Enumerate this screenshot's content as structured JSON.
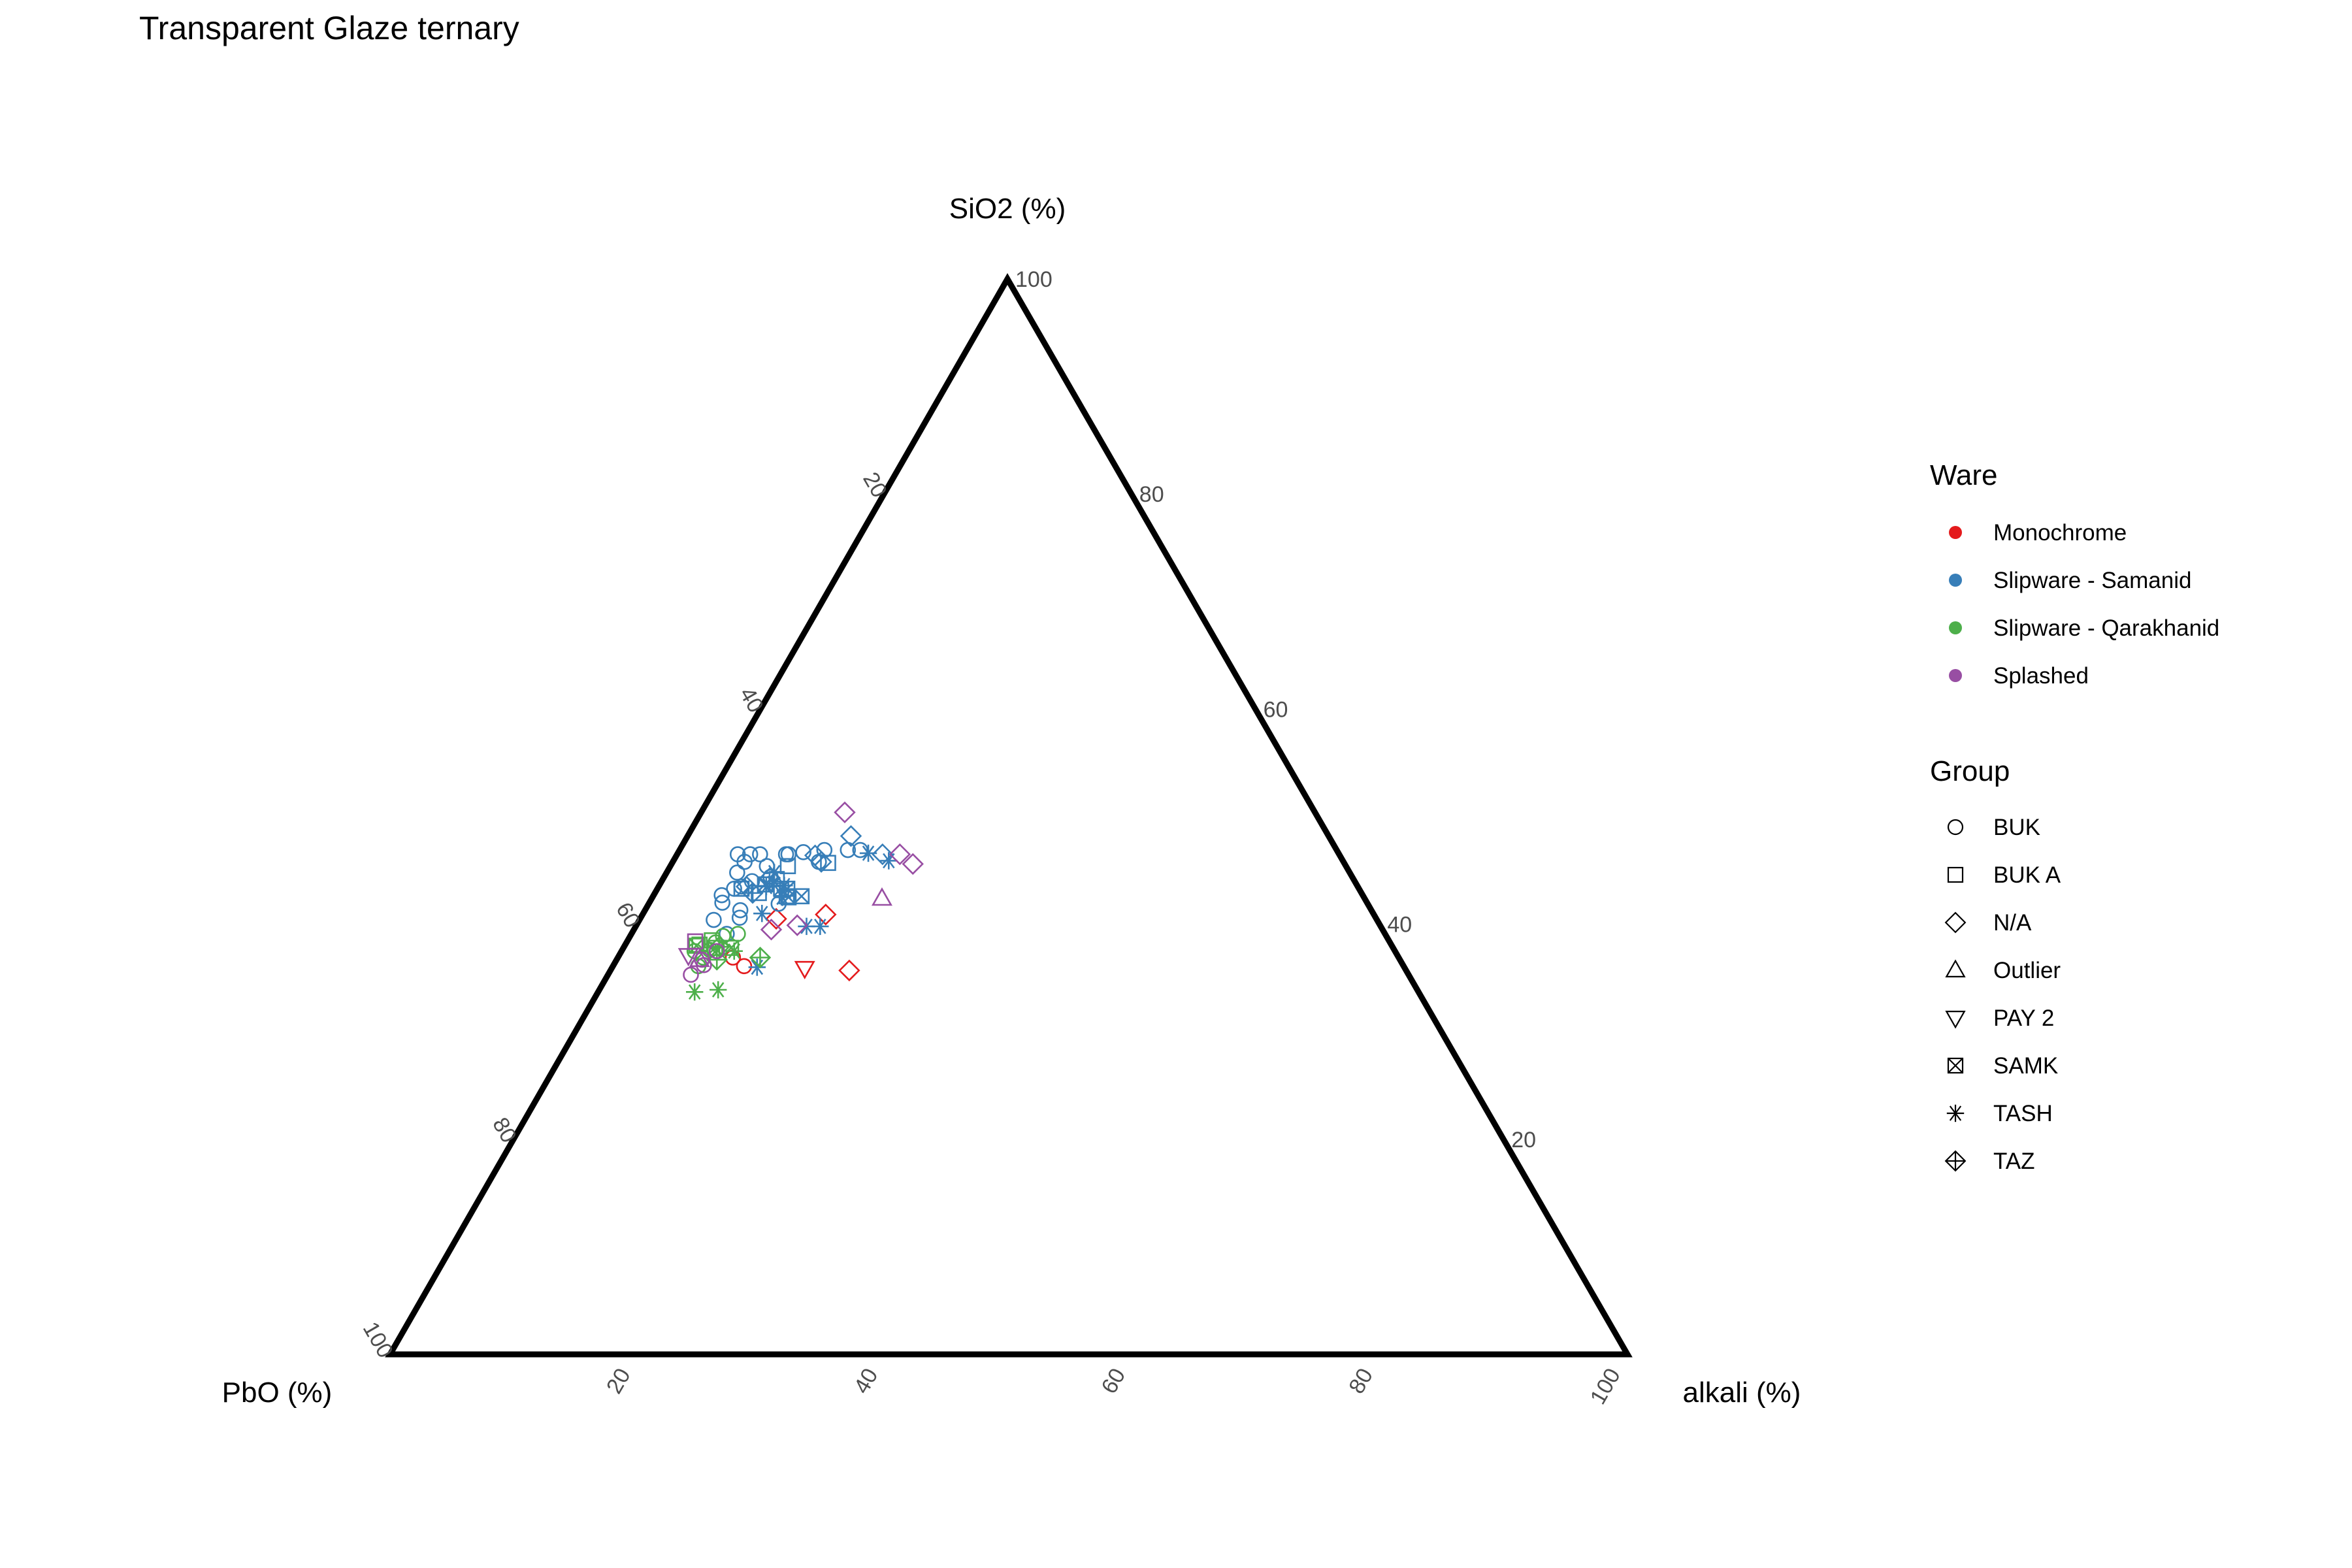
{
  "chart_data": {
    "type": "scatter",
    "subtype": "ternary",
    "title": "Transparent Glaze ternary",
    "axes": {
      "top": "SiO2 (%)",
      "left": "PbO (%)",
      "right": "alkali (%)"
    },
    "ticks": {
      "left_edge": [
        "20",
        "40",
        "60",
        "80",
        "100"
      ],
      "right_edge": [
        "20",
        "40",
        "60",
        "80",
        "100"
      ],
      "bottom_edge": [
        "20",
        "40",
        "60",
        "80",
        "100"
      ]
    },
    "legend_placement": "right",
    "ware_legend": {
      "title": "Ware",
      "items": [
        {
          "name": "Monochrome",
          "color": "#e41a1c"
        },
        {
          "name": "Slipware - Samanid",
          "color": "#377eb8"
        },
        {
          "name": "Slipware - Qarakhanid",
          "color": "#4daf4a"
        },
        {
          "name": "Splashed",
          "color": "#984ea3"
        }
      ]
    },
    "group_legend": {
      "title": "Group",
      "items": [
        {
          "name": "BUK",
          "shape": "circle"
        },
        {
          "name": "BUK A",
          "shape": "square"
        },
        {
          "name": "N/A",
          "shape": "diamond"
        },
        {
          "name": "Outlier",
          "shape": "triangle-up"
        },
        {
          "name": "PAY 2",
          "shape": "triangle-down"
        },
        {
          "name": "SAMK",
          "shape": "square-x"
        },
        {
          "name": "TASH",
          "shape": "asterisk"
        },
        {
          "name": "TAZ",
          "shape": "diamond-plus"
        }
      ]
    },
    "series": [
      {
        "name": "Monochrome",
        "points": [
          {
            "pbo": 53.8,
            "sio2": 36.9,
            "alkali": 9.3,
            "group": "BUK"
          },
          {
            "pbo": 53.3,
            "sio2": 36.1,
            "alkali": 10.6,
            "group": "BUK"
          },
          {
            "pbo": 48.5,
            "sio2": 35.9,
            "alkali": 15.6,
            "group": "PAY 2"
          },
          {
            "pbo": 48.5,
            "sio2": 40.5,
            "alkali": 11.0,
            "group": "N/A"
          },
          {
            "pbo": 44.3,
            "sio2": 40.9,
            "alkali": 14.8,
            "group": "N/A"
          },
          {
            "pbo": 45.0,
            "sio2": 35.7,
            "alkali": 19.3,
            "group": "N/A"
          }
        ]
      },
      {
        "name": "Slipware - Samanid",
        "points": [
          {
            "pbo": 48.6,
            "sio2": 46.5,
            "alkali": 4.9,
            "group": "BUK"
          },
          {
            "pbo": 47.6,
            "sio2": 46.5,
            "alkali": 5.9,
            "group": "BUK"
          },
          {
            "pbo": 46.8,
            "sio2": 46.5,
            "alkali": 6.7,
            "group": "BUK"
          },
          {
            "pbo": 48.4,
            "sio2": 45.8,
            "alkali": 5.8,
            "group": "BUK"
          },
          {
            "pbo": 46.8,
            "sio2": 45.4,
            "alkali": 7.8,
            "group": "BUK"
          },
          {
            "pbo": 47.0,
            "sio2": 44.4,
            "alkali": 8.6,
            "group": "BUK"
          },
          {
            "pbo": 52.1,
            "sio2": 42.0,
            "alkali": 5.9,
            "group": "BUK"
          },
          {
            "pbo": 51.8,
            "sio2": 42.7,
            "alkali": 5.5,
            "group": "BUK"
          },
          {
            "pbo": 53.2,
            "sio2": 39.1,
            "alkali": 7.7,
            "group": "BUK"
          },
          {
            "pbo": 51.4,
            "sio2": 40.6,
            "alkali": 8.0,
            "group": "BUK"
          },
          {
            "pbo": 53.6,
            "sio2": 40.4,
            "alkali": 6.0,
            "group": "BUK"
          },
          {
            "pbo": 51.0,
            "sio2": 41.3,
            "alkali": 7.7,
            "group": "BUK"
          },
          {
            "pbo": 50.5,
            "sio2": 43.3,
            "alkali": 6.2,
            "group": "BUK"
          },
          {
            "pbo": 49.8,
            "sio2": 43.5,
            "alkali": 6.7,
            "group": "BUK"
          },
          {
            "pbo": 44.7,
            "sio2": 46.5,
            "alkali": 8.8,
            "group": "BUK"
          },
          {
            "pbo": 44.5,
            "sio2": 46.5,
            "alkali": 9.0,
            "group": "BUK"
          },
          {
            "pbo": 43.2,
            "sio2": 46.7,
            "alkali": 10.1,
            "group": "BUK"
          },
          {
            "pbo": 42.4,
            "sio2": 45.8,
            "alkali": 11.8,
            "group": "BUK"
          },
          {
            "pbo": 41.4,
            "sio2": 46.9,
            "alkali": 11.7,
            "group": "BUK"
          },
          {
            "pbo": 39.5,
            "sio2": 46.9,
            "alkali": 13.6,
            "group": "BUK"
          },
          {
            "pbo": 38.5,
            "sio2": 46.9,
            "alkali": 14.6,
            "group": "BUK"
          },
          {
            "pbo": 49.5,
            "sio2": 44.8,
            "alkali": 5.7,
            "group": "BUK"
          },
          {
            "pbo": 48.7,
            "sio2": 44.0,
            "alkali": 7.3,
            "group": "BUK"
          },
          {
            "pbo": 47.6,
            "sio2": 41.9,
            "alkali": 10.5,
            "group": "BUK"
          },
          {
            "pbo": 46.6,
            "sio2": 44.2,
            "alkali": 9.2,
            "group": "BUK A"
          },
          {
            "pbo": 45.1,
            "sio2": 45.4,
            "alkali": 9.5,
            "group": "BUK A"
          },
          {
            "pbo": 49.9,
            "sio2": 43.3,
            "alkali": 6.8,
            "group": "BUK A"
          },
          {
            "pbo": 48.7,
            "sio2": 42.9,
            "alkali": 8.4,
            "group": "BUK A"
          },
          {
            "pbo": 46.6,
            "sio2": 42.6,
            "alkali": 10.8,
            "group": "BUK A"
          },
          {
            "pbo": 41.7,
            "sio2": 45.7,
            "alkali": 12.6,
            "group": "BUK A"
          },
          {
            "pbo": 47.1,
            "sio2": 44.3,
            "alkali": 8.6,
            "group": "N/A"
          },
          {
            "pbo": 49.4,
            "sio2": 43.5,
            "alkali": 7.1,
            "group": "N/A"
          },
          {
            "pbo": 42.4,
            "sio2": 46.4,
            "alkali": 11.2,
            "group": "N/A"
          },
          {
            "pbo": 42.2,
            "sio2": 45.8,
            "alkali": 12.0,
            "group": "N/A"
          },
          {
            "pbo": 38.6,
            "sio2": 48.2,
            "alkali": 13.2,
            "group": "N/A"
          },
          {
            "pbo": 36.9,
            "sio2": 46.5,
            "alkali": 16.6,
            "group": "N/A"
          },
          {
            "pbo": 46.2,
            "sio2": 43.3,
            "alkali": 10.5,
            "group": "SAMK"
          },
          {
            "pbo": 47.8,
            "sio2": 43.7,
            "alkali": 8.5,
            "group": "SAMK"
          },
          {
            "pbo": 46.5,
            "sio2": 42.5,
            "alkali": 11.0,
            "group": "SAMK"
          },
          {
            "pbo": 46.7,
            "sio2": 43.3,
            "alkali": 10.0,
            "group": "SAMK"
          },
          {
            "pbo": 45.4,
            "sio2": 42.6,
            "alkali": 12.0,
            "group": "SAMK"
          },
          {
            "pbo": 46.3,
            "sio2": 43.6,
            "alkali": 10.1,
            "group": "TASH"
          },
          {
            "pbo": 47.8,
            "sio2": 43.5,
            "alkali": 8.7,
            "group": "TASH"
          },
          {
            "pbo": 47.1,
            "sio2": 43.8,
            "alkali": 9.1,
            "group": "TASH"
          },
          {
            "pbo": 46.5,
            "sio2": 44.8,
            "alkali": 8.7,
            "group": "TASH"
          },
          {
            "pbo": 47.0,
            "sio2": 42.5,
            "alkali": 10.5,
            "group": "TASH"
          },
          {
            "pbo": 49.4,
            "sio2": 41.0,
            "alkali": 9.6,
            "group": "TASH"
          },
          {
            "pbo": 46.4,
            "sio2": 39.8,
            "alkali": 13.8,
            "group": "TASH"
          },
          {
            "pbo": 45.3,
            "sio2": 39.8,
            "alkali": 14.9,
            "group": "TASH"
          },
          {
            "pbo": 52.3,
            "sio2": 36.0,
            "alkali": 11.7,
            "group": "TASH"
          },
          {
            "pbo": 38.0,
            "sio2": 46.6,
            "alkali": 15.4,
            "group": "TASH"
          },
          {
            "pbo": 36.7,
            "sio2": 45.9,
            "alkali": 17.4,
            "group": "TASH"
          },
          {
            "pbo": 49.2,
            "sio2": 42.9,
            "alkali": 7.9,
            "group": "TAZ"
          }
        ]
      },
      {
        "name": "Slipware - Qarakhanid",
        "points": [
          {
            "pbo": 57.0,
            "sio2": 36.1,
            "alkali": 6.9,
            "group": "BUK"
          },
          {
            "pbo": 56.2,
            "sio2": 36.9,
            "alkali": 6.9,
            "group": "BUK"
          },
          {
            "pbo": 56.6,
            "sio2": 37.5,
            "alkali": 5.9,
            "group": "BUK"
          },
          {
            "pbo": 55.3,
            "sio2": 37.6,
            "alkali": 7.1,
            "group": "BUK"
          },
          {
            "pbo": 54.5,
            "sio2": 38.3,
            "alkali": 7.2,
            "group": "BUK"
          },
          {
            "pbo": 53.6,
            "sio2": 38.9,
            "alkali": 7.5,
            "group": "BUK"
          },
          {
            "pbo": 52.3,
            "sio2": 39.1,
            "alkali": 8.6,
            "group": "BUK"
          },
          {
            "pbo": 55.9,
            "sio2": 38.1,
            "alkali": 6.0,
            "group": "BUK A"
          },
          {
            "pbo": 54.7,
            "sio2": 38.5,
            "alkali": 6.8,
            "group": "BUK A"
          },
          {
            "pbo": 56.2,
            "sio2": 38.0,
            "alkali": 5.8,
            "group": "SAMK"
          },
          {
            "pbo": 54.8,
            "sio2": 37.8,
            "alkali": 7.4,
            "group": "SAMK"
          },
          {
            "pbo": 53.5,
            "sio2": 37.8,
            "alkali": 8.7,
            "group": "SAMK"
          },
          {
            "pbo": 58.5,
            "sio2": 33.7,
            "alkali": 7.8,
            "group": "TASH"
          },
          {
            "pbo": 56.5,
            "sio2": 33.9,
            "alkali": 9.6,
            "group": "TASH"
          },
          {
            "pbo": 53.4,
            "sio2": 37.5,
            "alkali": 9.1,
            "group": "TASH"
          },
          {
            "pbo": 55.2,
            "sio2": 36.7,
            "alkali": 8.1,
            "group": "TAZ"
          },
          {
            "pbo": 54.4,
            "sio2": 37.9,
            "alkali": 7.7,
            "group": "TAZ"
          },
          {
            "pbo": 51.6,
            "sio2": 36.9,
            "alkali": 11.5,
            "group": "TAZ"
          }
        ]
      },
      {
        "name": "Splashed",
        "points": [
          {
            "pbo": 58.0,
            "sio2": 35.3,
            "alkali": 6.7,
            "group": "BUK"
          },
          {
            "pbo": 56.5,
            "sio2": 36.2,
            "alkali": 7.3,
            "group": "BUK"
          },
          {
            "pbo": 56.4,
            "sio2": 36.7,
            "alkali": 6.9,
            "group": "BUK"
          },
          {
            "pbo": 54.8,
            "sio2": 37.5,
            "alkali": 7.7,
            "group": "BUK"
          },
          {
            "pbo": 56.1,
            "sio2": 38.4,
            "alkali": 5.5,
            "group": "BUK A"
          },
          {
            "pbo": 49.4,
            "sio2": 39.5,
            "alkali": 11.1,
            "group": "N/A"
          },
          {
            "pbo": 47.1,
            "sio2": 39.9,
            "alkali": 13.0,
            "group": "N/A"
          },
          {
            "pbo": 38.0,
            "sio2": 50.4,
            "alkali": 11.6,
            "group": "N/A"
          },
          {
            "pbo": 35.5,
            "sio2": 46.5,
            "alkali": 18.0,
            "group": "N/A"
          },
          {
            "pbo": 34.9,
            "sio2": 45.6,
            "alkali": 19.5,
            "group": "N/A"
          },
          {
            "pbo": 56.6,
            "sio2": 36.7,
            "alkali": 6.7,
            "group": "Outlier"
          },
          {
            "pbo": 39.0,
            "sio2": 42.4,
            "alkali": 18.6,
            "group": "Outlier"
          },
          {
            "pbo": 57.3,
            "sio2": 37.1,
            "alkali": 5.6,
            "group": "PAY 2"
          }
        ]
      }
    ]
  }
}
